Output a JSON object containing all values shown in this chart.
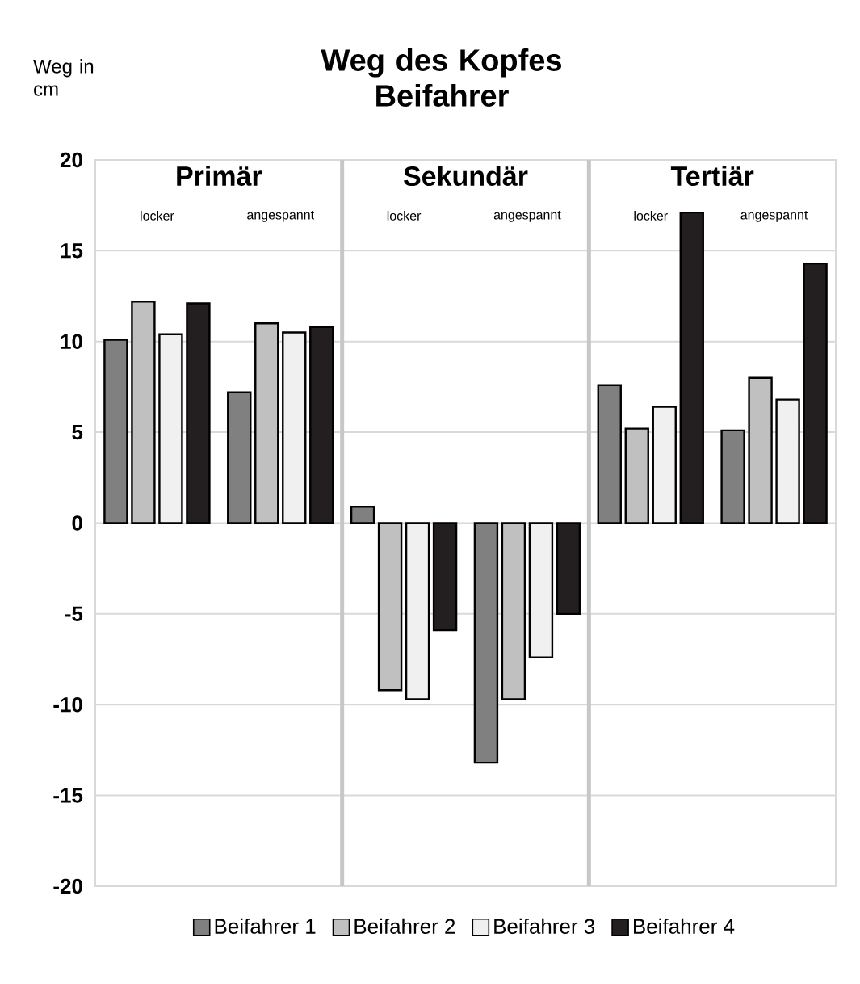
{
  "chart_data": {
    "type": "bar",
    "title": "Weg des Kopfes Beifahrer",
    "ylabel": "Weg in cm",
    "categories": [
      "locker",
      "angespannt",
      "locker",
      "angespannt",
      "locker",
      "angespannt"
    ],
    "annotations": [
      "Primär",
      "Sekundär",
      "Tertiär"
    ],
    "series": [
      {
        "name": "Beifahrer 1",
        "color": "#808080",
        "values": [
          10.1,
          7.2,
          0.9,
          -13.2,
          7.6,
          5.1
        ]
      },
      {
        "name": "Beifahrer 2",
        "color": "#c0c0c0",
        "values": [
          12.2,
          11.0,
          -9.2,
          -9.7,
          5.2,
          8.0
        ]
      },
      {
        "name": "Beifahrer 3",
        "color": "#f0f0f0",
        "values": [
          10.4,
          10.5,
          -9.7,
          -7.4,
          6.4,
          6.8
        ]
      },
      {
        "name": "Beifahrer 4",
        "color": "#231f20",
        "values": [
          12.1,
          10.8,
          -5.9,
          -5.0,
          17.1,
          14.3
        ]
      }
    ],
    "ylim": [
      -20,
      20
    ],
    "yticks": [
      -20,
      -15,
      -10,
      -5,
      0,
      5,
      10,
      15,
      20
    ],
    "grid": true,
    "legend": "bottom"
  }
}
